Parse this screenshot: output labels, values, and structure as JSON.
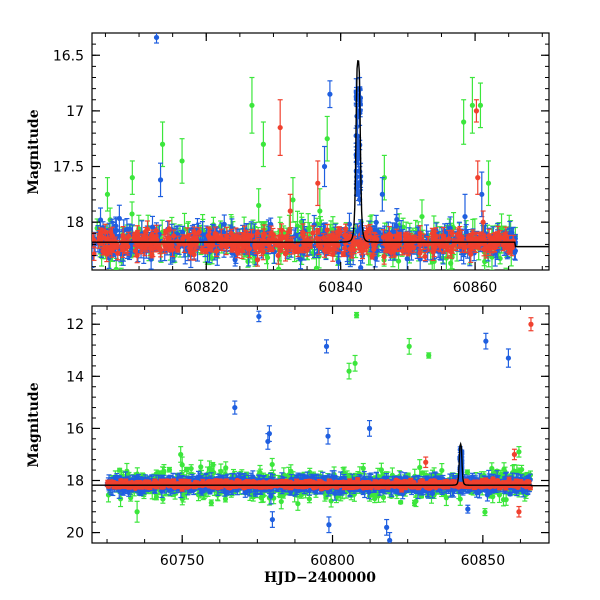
{
  "figure": {
    "xlabel": "HJD−2400000"
  },
  "colors": {
    "blue": "#1f5fe0",
    "green": "#3ce63c",
    "red": "#f0412f",
    "model": "#000000"
  },
  "chart_data": [
    {
      "type": "scatter",
      "panel": "top",
      "ylabel": "Magnitude",
      "xlabel": "",
      "xlim": [
        60803,
        60871
      ],
      "ylim": [
        18.43,
        16.3
      ],
      "y_inverted": true,
      "x_ticks": [
        60820,
        60840,
        60860
      ],
      "y_ticks": [
        16.5,
        17,
        17.5,
        18
      ],
      "baseline_mag": 18.18,
      "series": [
        {
          "color_key": "blue",
          "x_range": [
            60803,
            60866
          ],
          "count": 420,
          "scatter": 0.07,
          "err": [
            0.03,
            0.12
          ],
          "outliers": [
            [
              60812.6,
              16.34,
              0.05
            ],
            [
              60813.2,
              17.62,
              0.15
            ],
            [
              60838.4,
              16.85,
              0.12
            ],
            [
              60837.6,
              17.5,
              0.18
            ],
            [
              60846.2,
              17.75,
              0.15
            ],
            [
              60858.5,
              17.95,
              0.2
            ],
            [
              60861.0,
              17.75,
              0.2
            ]
          ]
        },
        {
          "color_key": "green",
          "x_range": [
            60803,
            60866
          ],
          "count": 320,
          "scatter": 0.08,
          "err": [
            0.04,
            0.15
          ],
          "outliers": [
            [
              60805.3,
              17.75,
              0.15
            ],
            [
              60809.0,
              17.6,
              0.15
            ],
            [
              60813.5,
              17.3,
              0.2
            ],
            [
              60816.4,
              17.45,
              0.2
            ],
            [
              60826.8,
              16.95,
              0.25
            ],
            [
              60827.8,
              17.85,
              0.15
            ],
            [
              60828.5,
              17.3,
              0.2
            ],
            [
              60832.9,
              17.8,
              0.2
            ],
            [
              60836.9,
              17.9,
              0.2
            ],
            [
              60838.0,
              17.25,
              0.2
            ],
            [
              60846.5,
              17.6,
              0.2
            ],
            [
              60852.1,
              17.95,
              0.15
            ],
            [
              60858.3,
              17.1,
              0.2
            ],
            [
              60859.6,
              16.95,
              0.25
            ],
            [
              60860.8,
              16.95,
              0.2
            ],
            [
              60862.0,
              17.65,
              0.2
            ]
          ]
        },
        {
          "color_key": "red",
          "x_range": [
            60803,
            60866
          ],
          "count": 480,
          "scatter": 0.05,
          "err": [
            0.02,
            0.08
          ],
          "outliers": [
            [
              60831.0,
              17.15,
              0.25
            ],
            [
              60832.5,
              17.9,
              0.15
            ],
            [
              60836.6,
              17.65,
              0.2
            ],
            [
              60860.2,
              17.0,
              0.1
            ],
            [
              60860.4,
              17.6,
              0.15
            ],
            [
              60861.2,
              18.0,
              0.1
            ]
          ]
        }
      ],
      "burst": {
        "color_key": "blue",
        "x": [
          60842.3,
          60843.0
        ],
        "count": 40,
        "mag_range": [
          16.8,
          18.1
        ]
      },
      "model": {
        "color_key": "model",
        "baseline": 18.18,
        "peak_x": 60842.6,
        "peak_mag": 16.55,
        "half_width": 0.35,
        "tail_mag": 18.22,
        "tail_x": [
          60866,
          60871
        ]
      }
    },
    {
      "type": "scatter",
      "panel": "bottom",
      "ylabel": "Magnitude",
      "xlabel": "HJD−2400000",
      "xlim": [
        60720,
        60872
      ],
      "ylim": [
        20.4,
        11.3
      ],
      "y_inverted": true,
      "x_ticks": [
        60750,
        60800,
        60850
      ],
      "y_ticks": [
        12,
        14,
        16,
        18,
        20
      ],
      "baseline_mag": 18.15,
      "series": [
        {
          "color_key": "blue",
          "x_range": [
            60725,
            60866
          ],
          "count": 900,
          "scatter": 0.12,
          "err": [
            0.05,
            0.3
          ],
          "outliers": [
            [
              60767.5,
              15.2,
              0.25
            ],
            [
              60775.5,
              11.7,
              0.2
            ],
            [
              60778.5,
              16.5,
              0.3
            ],
            [
              60779.0,
              16.2,
              0.3
            ],
            [
              60779.5,
              18.6,
              0.3
            ],
            [
              60780.0,
              19.5,
              0.3
            ],
            [
              60798.0,
              12.85,
              0.25
            ],
            [
              60798.5,
              16.3,
              0.3
            ],
            [
              60798.8,
              19.7,
              0.3
            ],
            [
              60812.3,
              16.0,
              0.3
            ],
            [
              60818.0,
              19.8,
              0.3
            ],
            [
              60819.0,
              20.3,
              0.3
            ],
            [
              60845.0,
              19.1,
              0.15
            ],
            [
              60851.0,
              12.65,
              0.3
            ],
            [
              60858.5,
              13.3,
              0.35
            ]
          ]
        },
        {
          "color_key": "green",
          "x_range": [
            60725,
            60866
          ],
          "count": 700,
          "scatter": 0.25,
          "err": [
            0.05,
            0.3
          ],
          "outliers": [
            [
              60729.5,
              18.7,
              0.3
            ],
            [
              60735.0,
              19.2,
              0.4
            ],
            [
              60749.5,
              17.0,
              0.3
            ],
            [
              60750.0,
              17.4,
              0.3
            ],
            [
              60760.5,
              17.7,
              0.3
            ],
            [
              60805.5,
              13.8,
              0.3
            ],
            [
              60807.5,
              13.5,
              0.3
            ],
            [
              60808.0,
              11.65,
              0.1
            ],
            [
              60825.5,
              12.85,
              0.3
            ],
            [
              60829.0,
              17.5,
              0.3
            ],
            [
              60832.0,
              13.2,
              0.1
            ],
            [
              60862.0,
              16.9,
              0.2
            ]
          ]
        },
        {
          "color_key": "red",
          "x_range": [
            60725,
            60866
          ],
          "count": 1000,
          "scatter": 0.06,
          "err": [
            0.02,
            0.1
          ],
          "outliers": [
            [
              60831.0,
              17.3,
              0.2
            ],
            [
              60860.5,
              17.0,
              0.2
            ],
            [
              60862.0,
              19.2,
              0.2
            ],
            [
              60866.0,
              12.0,
              0.25
            ]
          ]
        }
      ],
      "burst": {
        "color_key": "blue",
        "x": [
          60842.3,
          60843.0
        ],
        "count": 25,
        "mag_range": [
          16.8,
          18.1
        ]
      },
      "model": {
        "color_key": "model",
        "baseline": 18.18,
        "peak_x": 60842.6,
        "peak_mag": 16.6,
        "half_width": 0.5,
        "tail_mag": 18.2,
        "tail_x": [
          60866,
          60872
        ]
      }
    }
  ]
}
